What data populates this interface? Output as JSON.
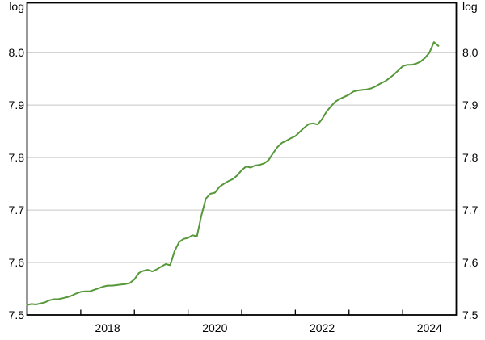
{
  "chart_data": {
    "type": "line",
    "title": "",
    "unit_label": "log",
    "frequency": "monthly",
    "start": "2017-01",
    "end": "2024-09",
    "line_color": "#56983a",
    "grid_color": "#c6c6c6",
    "frame_color": "#000000",
    "grid": true,
    "legend_position": "none",
    "xlim": [
      2017.0,
      2025.0
    ],
    "ylim": [
      7.5,
      8.095
    ],
    "y_ticks": [
      7.5,
      7.6,
      7.7,
      7.8,
      7.9,
      8.0
    ],
    "y_tick_labels": [
      "7.5",
      "7.6",
      "7.7",
      "7.8",
      "7.9",
      "8.0"
    ],
    "x_tick_years": [
      2018,
      2019,
      2020,
      2021,
      2022,
      2023,
      2024
    ],
    "x_label_years": [
      "2018",
      "2020",
      "2022",
      "2024"
    ],
    "values": [
      7.519,
      7.521,
      7.52,
      7.522,
      7.524,
      7.528,
      7.53,
      7.53,
      7.532,
      7.534,
      7.537,
      7.541,
      7.544,
      7.545,
      7.545,
      7.548,
      7.551,
      7.554,
      7.556,
      7.556,
      7.557,
      7.558,
      7.559,
      7.561,
      7.568,
      7.58,
      7.584,
      7.586,
      7.583,
      7.587,
      7.592,
      7.597,
      7.595,
      7.622,
      7.639,
      7.645,
      7.647,
      7.652,
      7.65,
      7.69,
      7.722,
      7.731,
      7.733,
      7.744,
      7.75,
      7.755,
      7.759,
      7.766,
      7.776,
      7.783,
      7.781,
      7.785,
      7.786,
      7.789,
      7.795,
      7.808,
      7.82,
      7.828,
      7.832,
      7.837,
      7.841,
      7.849,
      7.857,
      7.864,
      7.865,
      7.863,
      7.874,
      7.888,
      7.898,
      7.907,
      7.912,
      7.916,
      7.92,
      7.926,
      7.928,
      7.929,
      7.93,
      7.932,
      7.936,
      7.941,
      7.945,
      7.951,
      7.958,
      7.966,
      7.974,
      7.977,
      7.977,
      7.979,
      7.983,
      7.99,
      8.0,
      8.02,
      8.013
    ]
  }
}
